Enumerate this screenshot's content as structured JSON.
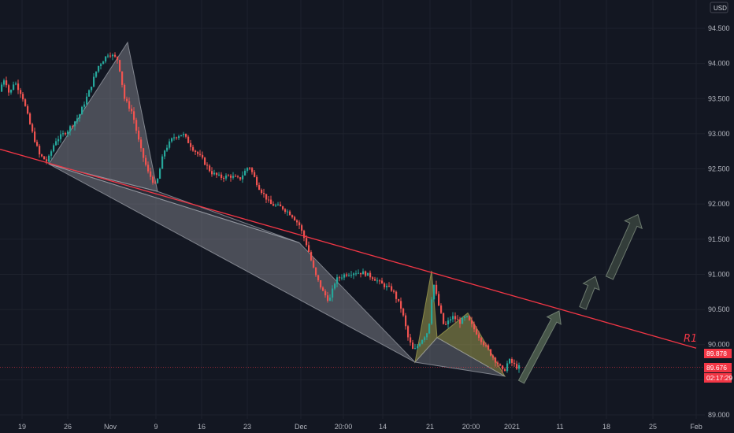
{
  "currency": "USD",
  "colors": {
    "background": "#131722",
    "grid": "#1e222d",
    "up": "#26a69a",
    "down": "#ef5350",
    "r1": "#f23645",
    "xabcd": "#9598a1",
    "harmonic": "#9c9a4e",
    "arrow": "#4e5d4e",
    "badge": "#f23645"
  },
  "chart_data": {
    "type": "candlestick",
    "ylim": [
      89.0,
      94.8
    ],
    "y_ticks": [
      "89.000",
      "89.500",
      "90.000",
      "90.500",
      "91.000",
      "91.500",
      "92.000",
      "92.500",
      "93.000",
      "93.500",
      "94.000",
      "94.500"
    ],
    "x_ticks": [
      "19",
      "26",
      "Nov",
      "9",
      "16",
      "23",
      "Dec",
      "20:00",
      "14",
      "21",
      "20:00",
      "2021",
      "11",
      "18",
      "25",
      "Feb"
    ],
    "grid": true,
    "price_badges": [
      {
        "label": "89.878",
        "value": 89.878
      },
      {
        "label": "89.676",
        "value": 89.676
      },
      {
        "label": "02:17:29",
        "value": 89.55
      }
    ],
    "trendline": {
      "label": "R1",
      "points": [
        [
          0,
          92.78
        ],
        [
          884,
          89.95
        ]
      ]
    },
    "pattern_xabcd": {
      "X": [
        62,
        92.57
      ],
      "A": [
        162,
        94.3
      ],
      "B": [
        200,
        92.18
      ],
      "C": [
        380,
        91.45
      ],
      "D": [
        527,
        89.75
      ]
    },
    "pattern_harmonic": {
      "X": [
        527,
        89.75
      ],
      "A": [
        548,
        91.05
      ],
      "B": [
        555,
        90.1
      ],
      "C": [
        594,
        90.45
      ],
      "D": [
        641,
        89.55
      ]
    },
    "projection_arrows": [
      {
        "from": [
          662,
          89.47
        ],
        "to": [
          710,
          90.48
        ]
      },
      {
        "from": [
          740,
          90.52
        ],
        "to": [
          756,
          90.97
        ]
      },
      {
        "from": [
          774,
          90.95
        ],
        "to": [
          810,
          91.85
        ]
      }
    ],
    "path_anchors": [
      [
        0,
        93.6
      ],
      [
        8,
        93.8
      ],
      [
        14,
        93.55
      ],
      [
        20,
        93.75
      ],
      [
        30,
        93.55
      ],
      [
        42,
        93.05
      ],
      [
        52,
        92.7
      ],
      [
        62,
        92.6
      ],
      [
        72,
        92.9
      ],
      [
        88,
        93.05
      ],
      [
        102,
        93.25
      ],
      [
        115,
        93.6
      ],
      [
        126,
        93.95
      ],
      [
        140,
        94.15
      ],
      [
        152,
        94.05
      ],
      [
        160,
        93.5
      ],
      [
        170,
        93.3
      ],
      [
        180,
        92.8
      ],
      [
        190,
        92.45
      ],
      [
        200,
        92.25
      ],
      [
        210,
        92.75
      ],
      [
        222,
        92.95
      ],
      [
        234,
        93.0
      ],
      [
        246,
        92.8
      ],
      [
        258,
        92.65
      ],
      [
        270,
        92.45
      ],
      [
        282,
        92.38
      ],
      [
        294,
        92.4
      ],
      [
        306,
        92.35
      ],
      [
        318,
        92.55
      ],
      [
        330,
        92.25
      ],
      [
        345,
        92.0
      ],
      [
        360,
        91.95
      ],
      [
        372,
        91.85
      ],
      [
        382,
        91.7
      ],
      [
        392,
        91.4
      ],
      [
        402,
        91.0
      ],
      [
        412,
        90.75
      ],
      [
        420,
        90.62
      ],
      [
        428,
        90.92
      ],
      [
        440,
        91.0
      ],
      [
        452,
        91.03
      ],
      [
        464,
        91.02
      ],
      [
        476,
        90.95
      ],
      [
        488,
        90.85
      ],
      [
        500,
        90.78
      ],
      [
        512,
        90.5
      ],
      [
        520,
        90.1
      ],
      [
        527,
        89.9
      ],
      [
        536,
        90.05
      ],
      [
        546,
        90.2
      ],
      [
        552,
        90.9
      ],
      [
        558,
        90.6
      ],
      [
        566,
        90.25
      ],
      [
        576,
        90.4
      ],
      [
        586,
        90.32
      ],
      [
        594,
        90.4
      ],
      [
        604,
        90.22
      ],
      [
        614,
        90.05
      ],
      [
        626,
        89.85
      ],
      [
        636,
        89.7
      ],
      [
        641,
        89.6
      ],
      [
        648,
        89.78
      ],
      [
        654,
        89.72
      ],
      [
        658,
        89.68
      ]
    ]
  }
}
